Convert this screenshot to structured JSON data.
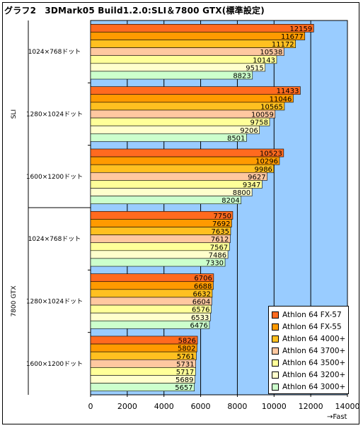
{
  "title": "グラフ2　3DMark05 Build1.2.0:SLI＆7800 GTX(標準設定)",
  "chart_data": {
    "type": "bar",
    "orientation": "horizontal",
    "xlim": [
      0,
      14000
    ],
    "x_ticks": [
      0,
      2000,
      4000,
      6000,
      8000,
      10000,
      12000,
      14000
    ],
    "x_unit_label": "→Fast",
    "grid": true,
    "legend_position": "bottom-right",
    "groups": [
      {
        "name": "SLI",
        "categories": [
          {
            "label": "1024×768ドット",
            "values": [
              12159,
              11677,
              11172,
              10538,
              10143,
              9515,
              8823
            ]
          },
          {
            "label": "1280×1024ドット",
            "values": [
              11433,
              11046,
              10565,
              10059,
              9758,
              9206,
              8501
            ]
          },
          {
            "label": "1600×1200ドット",
            "values": [
              10523,
              10296,
              9986,
              9627,
              9347,
              8800,
              8204
            ]
          }
        ]
      },
      {
        "name": "7800 GTX",
        "categories": [
          {
            "label": "1024×768ドット",
            "values": [
              7750,
              7692,
              7635,
              7612,
              7567,
              7486,
              7330
            ]
          },
          {
            "label": "1280×1024ドット",
            "values": [
              6706,
              6688,
              6632,
              6604,
              6576,
              6533,
              6476
            ]
          },
          {
            "label": "1600×1200ドット",
            "values": [
              5826,
              5802,
              5761,
              5731,
              5717,
              5689,
              5657
            ]
          }
        ]
      }
    ],
    "series": [
      {
        "name": "Athlon 64 FX-57",
        "color": "#FF6A1F"
      },
      {
        "name": "Athlon 64 FX-55",
        "color": "#FF9A00"
      },
      {
        "name": "Athlon 64 4000+",
        "color": "#FFC020"
      },
      {
        "name": "Athlon 64 3700+",
        "color": "#FFC8A0"
      },
      {
        "name": "Athlon 64 3500+",
        "color": "#FFFF99"
      },
      {
        "name": "Athlon 64 3200+",
        "color": "#FFFFCC"
      },
      {
        "name": "Athlon 64 3000+",
        "color": "#CCFFCC"
      }
    ],
    "plot_background": "#99CCFF"
  }
}
